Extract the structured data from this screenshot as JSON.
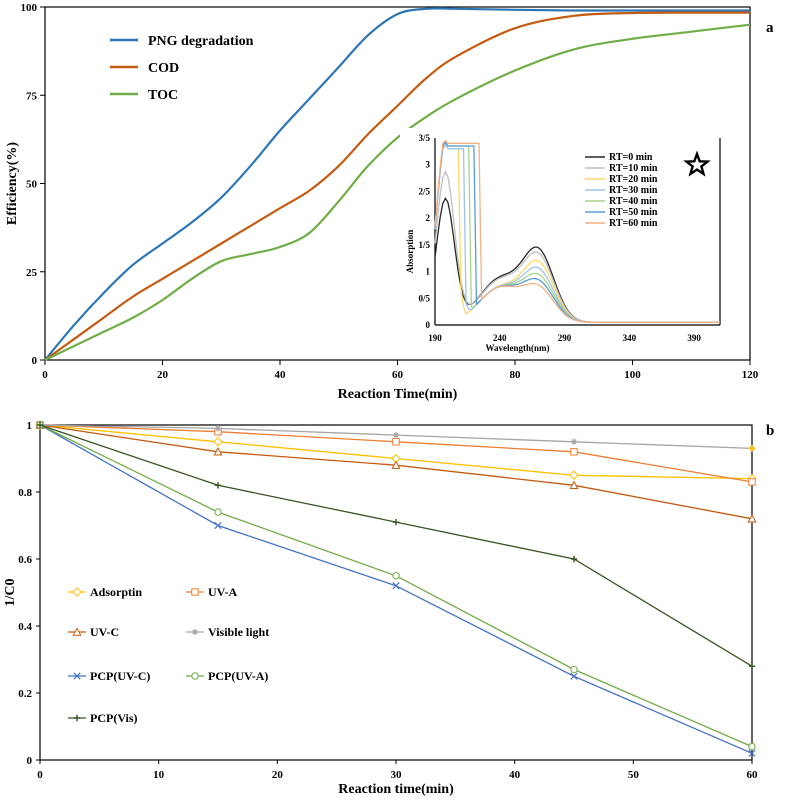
{
  "chart_data": [
    {
      "type": "line",
      "panel": "a",
      "title": "",
      "xlabel": "Reaction Time(min)",
      "ylabel": "Efficiency(%)",
      "xlim": [
        0,
        120
      ],
      "ylim": [
        0,
        100
      ],
      "xticks": [
        0,
        20,
        40,
        60,
        80,
        100,
        120
      ],
      "yticks": [
        0,
        25,
        50,
        75,
        100
      ],
      "legend_position": "top-left",
      "series": [
        {
          "name": "PNG degradation",
          "color": "#2e75b6",
          "x": [
            0,
            5,
            10,
            15,
            20,
            25,
            30,
            35,
            40,
            45,
            50,
            55,
            60,
            65,
            70,
            80,
            90,
            100,
            110,
            120
          ],
          "y": [
            0,
            10,
            19,
            27,
            33,
            39,
            46,
            55,
            65,
            74,
            83,
            92,
            98,
            99.5,
            99.5,
            99.2,
            99,
            99,
            99,
            99
          ]
        },
        {
          "name": "COD",
          "color": "#c55a11",
          "x": [
            0,
            5,
            10,
            15,
            20,
            25,
            30,
            35,
            40,
            45,
            50,
            55,
            60,
            65,
            70,
            80,
            90,
            100,
            110,
            120
          ],
          "y": [
            0,
            6,
            12,
            18,
            23,
            28,
            33,
            38,
            43,
            48,
            55,
            64,
            72,
            80,
            86,
            94,
            97.5,
            98.3,
            98.4,
            98.4
          ]
        },
        {
          "name": "TOC",
          "color": "#70ad47",
          "x": [
            0,
            5,
            10,
            15,
            20,
            25,
            30,
            35,
            40,
            45,
            50,
            55,
            60,
            65,
            70,
            80,
            90,
            100,
            110,
            120
          ],
          "y": [
            0,
            4,
            8,
            12,
            17,
            23,
            28,
            30,
            32,
            36,
            45,
            55,
            63,
            69,
            74,
            82,
            88,
            91,
            93,
            95
          ]
        }
      ]
    },
    {
      "type": "line",
      "panel": "a-inset",
      "xlabel": "Wavelength(nm)",
      "ylabel": "Absorption",
      "xlim": [
        190,
        410
      ],
      "ylim": [
        0,
        3.5
      ],
      "xticks": [
        190,
        240,
        290,
        340,
        390
      ],
      "yticks": [
        "0",
        "0/5",
        "1",
        "1/5",
        "2",
        "2/5",
        "3",
        "3/5"
      ],
      "ytick_values": [
        0,
        0.5,
        1,
        1.5,
        2,
        2.5,
        3,
        3.5
      ],
      "marker_icon": "star-icon",
      "series": [
        {
          "name": "RT=0 min",
          "color": "#262626",
          "peak1": 2.3,
          "peak2": 1.27,
          "sat": 0
        },
        {
          "name": "RT=10 min",
          "color": "#bfbfbf",
          "peak1": 2.8,
          "peak2": 1.18,
          "sat": 0
        },
        {
          "name": "RT=20 min",
          "color": "#ffd966",
          "peak1": 3.3,
          "peak2": 1.05,
          "sat": 208
        },
        {
          "name": "RT=30 min",
          "color": "#9dc3e6",
          "peak1": 3.3,
          "peak2": 0.92,
          "sat": 212
        },
        {
          "name": "RT=40 min",
          "color": "#a9d18e",
          "peak1": 3.35,
          "peak2": 0.8,
          "sat": 216
        },
        {
          "name": "RT=50 min",
          "color": "#5b9bd5",
          "peak1": 3.35,
          "peak2": 0.7,
          "sat": 220
        },
        {
          "name": "RT=60 min",
          "color": "#f4b183",
          "peak1": 3.4,
          "peak2": 0.6,
          "sat": 224
        }
      ]
    },
    {
      "type": "line",
      "panel": "b",
      "xlabel": "Reaction time(min)",
      "ylabel": "1/C0",
      "xlim": [
        0,
        60
      ],
      "ylim": [
        0,
        1
      ],
      "xticks": [
        0,
        10,
        20,
        30,
        40,
        50,
        60
      ],
      "yticks": [
        0,
        0.2,
        0.4,
        0.6,
        0.8,
        1
      ],
      "legend_position": "lower-left",
      "series": [
        {
          "name": "Adsorptin",
          "color": "#ffc000",
          "marker": "diamond",
          "x": [
            0,
            15,
            30,
            45,
            60
          ],
          "y": [
            1,
            0.95,
            0.9,
            0.85,
            0.84
          ]
        },
        {
          "name": "UV-A",
          "color": "#ed7d31",
          "marker": "square",
          "x": [
            0,
            15,
            30,
            45,
            60
          ],
          "y": [
            1,
            0.98,
            0.95,
            0.92,
            0.83
          ]
        },
        {
          "name": "UV-C",
          "color": "#c55a11",
          "marker": "triangle",
          "x": [
            0,
            15,
            30,
            45,
            60
          ],
          "y": [
            1,
            0.92,
            0.88,
            0.82,
            0.72
          ]
        },
        {
          "name": "Visible light",
          "color": "#a5a5a5",
          "marker": "star",
          "x": [
            0,
            15,
            30,
            45,
            60
          ],
          "y": [
            1,
            0.99,
            0.97,
            0.95,
            0.93
          ]
        },
        {
          "name": "PCP(UV-C)",
          "color": "#4472c4",
          "marker": "x",
          "x": [
            0,
            15,
            30,
            45,
            60
          ],
          "y": [
            1,
            0.7,
            0.52,
            0.25,
            0.02
          ]
        },
        {
          "name": "PCP(UV-A)",
          "color": "#70ad47",
          "marker": "circle",
          "x": [
            0,
            15,
            30,
            45,
            60
          ],
          "y": [
            1,
            0.74,
            0.55,
            0.27,
            0.04
          ]
        },
        {
          "name": "PCP(Vis)",
          "color": "#375623",
          "marker": "plus",
          "x": [
            0,
            15,
            30,
            45,
            60
          ],
          "y": [
            1,
            0.82,
            0.71,
            0.6,
            0.28
          ]
        }
      ],
      "extra_points": [
        {
          "series": "Visible light",
          "x": 60,
          "y": 0.93,
          "color": "#ffc000"
        }
      ]
    }
  ]
}
